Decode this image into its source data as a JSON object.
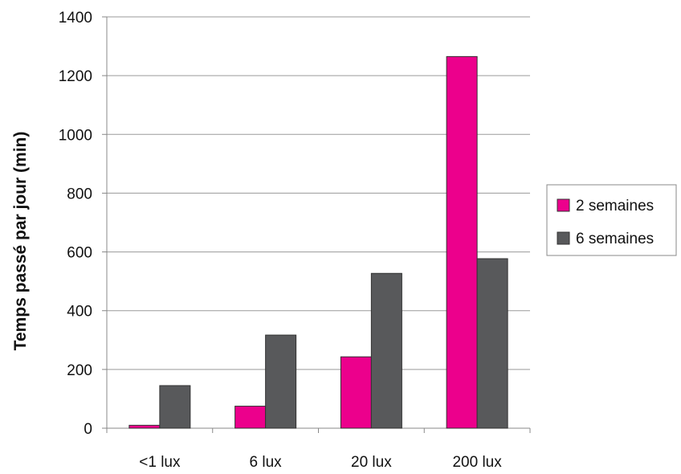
{
  "chart_data": {
    "type": "bar",
    "categories": [
      "<1 lux",
      "6 lux",
      "20 lux",
      "200 lux"
    ],
    "series": [
      {
        "name": "2 semaines",
        "color": "#ec008c",
        "values": [
          10,
          75,
          243,
          1265
        ]
      },
      {
        "name": "6 semaines",
        "color": "#58595b",
        "values": [
          145,
          317,
          527,
          577
        ]
      }
    ],
    "title": "",
    "xlabel": "",
    "ylabel": "Temps passé par jour (min)",
    "ylim": [
      0,
      1400
    ],
    "yticks": [
      0,
      200,
      400,
      600,
      800,
      1000,
      1200,
      1400
    ],
    "grid": true,
    "legend_position": "right"
  }
}
